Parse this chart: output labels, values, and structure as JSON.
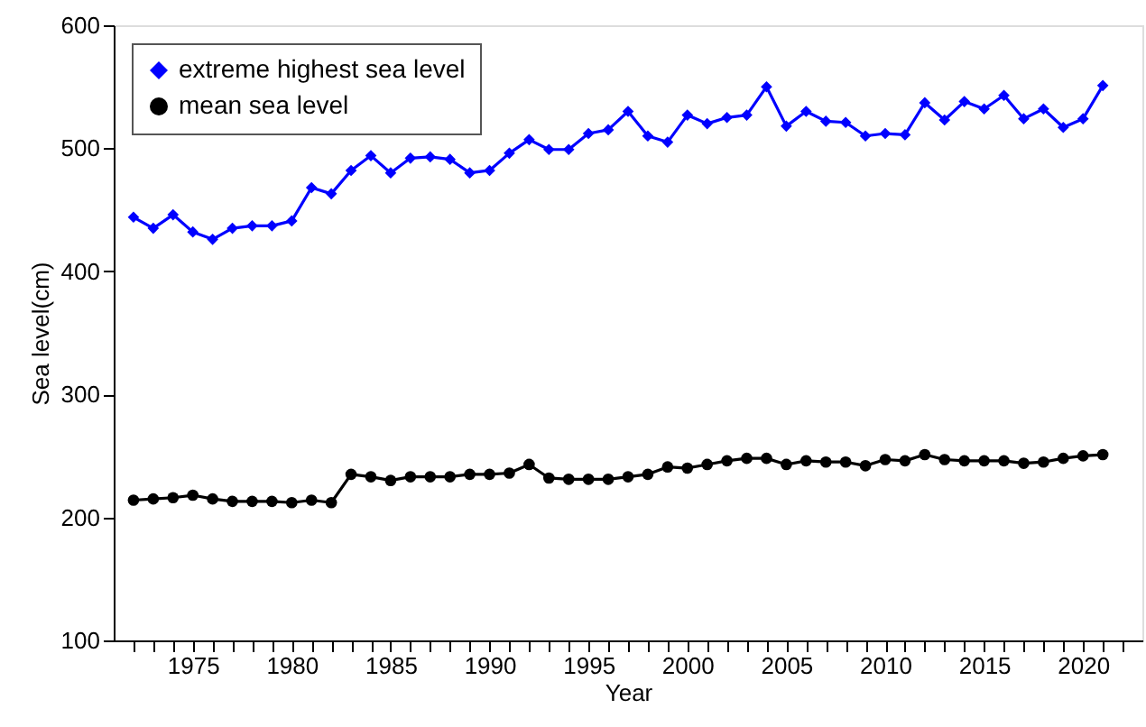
{
  "chart_data": {
    "type": "line",
    "xlabel": "Year",
    "ylabel": "Sea level(cm)",
    "x": [
      1972,
      1973,
      1974,
      1975,
      1976,
      1977,
      1978,
      1979,
      1980,
      1981,
      1982,
      1983,
      1984,
      1985,
      1986,
      1987,
      1988,
      1989,
      1990,
      1991,
      1992,
      1993,
      1994,
      1995,
      1996,
      1997,
      1998,
      1999,
      2000,
      2001,
      2002,
      2003,
      2004,
      2005,
      2006,
      2007,
      2008,
      2009,
      2010,
      2011,
      2012,
      2013,
      2014,
      2015,
      2016,
      2017,
      2018,
      2019,
      2020,
      2021
    ],
    "series": [
      {
        "name": "extreme highest sea level",
        "color": "#0000ff",
        "marker": "diamond",
        "values": [
          444,
          435,
          446,
          432,
          426,
          435,
          437,
          437,
          441,
          468,
          463,
          482,
          494,
          480,
          492,
          493,
          491,
          480,
          482,
          496,
          507,
          499,
          499,
          512,
          515,
          530,
          510,
          505,
          527,
          520,
          525,
          527,
          550,
          518,
          530,
          522,
          521,
          510,
          512,
          511,
          537,
          523,
          538,
          532,
          543,
          524,
          532,
          517,
          524,
          551
        ]
      },
      {
        "name": "mean sea level",
        "color": "#000000",
        "marker": "circle",
        "values": [
          214,
          215,
          216,
          218,
          215,
          213,
          213,
          213,
          212,
          214,
          212,
          235,
          233,
          230,
          233,
          233,
          233,
          235,
          235,
          236,
          243,
          232,
          231,
          231,
          231,
          233,
          235,
          241,
          240,
          243,
          246,
          248,
          248,
          243,
          246,
          245,
          245,
          242,
          247,
          246,
          251,
          247,
          246,
          246,
          246,
          244,
          245,
          248,
          250,
          251
        ]
      }
    ],
    "xlim": [
      1971,
      2023
    ],
    "xticks": [
      {
        "value": 1972,
        "label": null
      },
      {
        "value": 1973,
        "label": null
      },
      {
        "value": 1974,
        "label": null
      },
      1975,
      {
        "value": 1976,
        "label": null
      },
      {
        "value": 1977,
        "label": null
      },
      {
        "value": 1978,
        "label": null
      },
      {
        "value": 1979,
        "label": null
      },
      1980,
      {
        "value": 1981,
        "label": null
      },
      {
        "value": 1982,
        "label": null
      },
      {
        "value": 1983,
        "label": null
      },
      {
        "value": 1984,
        "label": null
      },
      1985,
      {
        "value": 1986,
        "label": null
      },
      {
        "value": 1987,
        "label": null
      },
      {
        "value": 1988,
        "label": null
      },
      {
        "value": 1989,
        "label": null
      },
      1990,
      {
        "value": 1991,
        "label": null
      },
      {
        "value": 1992,
        "label": null
      },
      {
        "value": 1993,
        "label": null
      },
      {
        "value": 1994,
        "label": null
      },
      1995,
      {
        "value": 1996,
        "label": null
      },
      {
        "value": 1997,
        "label": null
      },
      {
        "value": 1998,
        "label": null
      },
      {
        "value": 1999,
        "label": null
      },
      2000,
      {
        "value": 2001,
        "label": null
      },
      {
        "value": 2002,
        "label": null
      },
      {
        "value": 2003,
        "label": null
      },
      {
        "value": 2004,
        "label": null
      },
      2005,
      {
        "value": 2006,
        "label": null
      },
      {
        "value": 2007,
        "label": null
      },
      {
        "value": 2008,
        "label": null
      },
      {
        "value": 2009,
        "label": null
      },
      2010,
      {
        "value": 2011,
        "label": null
      },
      {
        "value": 2012,
        "label": null
      },
      {
        "value": 2013,
        "label": null
      },
      {
        "value": 2014,
        "label": null
      },
      2015,
      {
        "value": 2016,
        "label": null
      },
      {
        "value": 2017,
        "label": null
      },
      {
        "value": 2018,
        "label": null
      },
      {
        "value": 2019,
        "label": null
      },
      2020,
      {
        "value": 2021,
        "label": null
      },
      {
        "value": 2022,
        "label": null
      }
    ],
    "ylim": [
      100,
      600
    ],
    "yticks": [
      100,
      200,
      300,
      400,
      500,
      600
    ],
    "grid": false,
    "legend": "top left",
    "line_style": "solid"
  }
}
